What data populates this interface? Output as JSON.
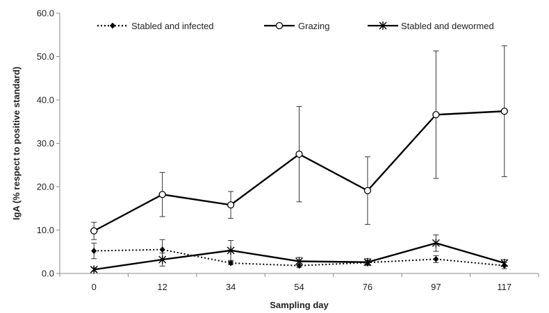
{
  "chart_data": {
    "type": "line",
    "x": [
      "0",
      "12",
      "34",
      "54",
      "76",
      "97",
      "117"
    ],
    "xlabel": "Sampling day",
    "ylabel": "IgA (% respect to positive standard)",
    "ylim": [
      0,
      60
    ],
    "yticks": [
      "0.0",
      "10.0",
      "20.0",
      "30.0",
      "40.0",
      "50.0",
      "60.0"
    ],
    "grid": false,
    "legend_position": "top",
    "series": [
      {
        "name": "Stabled and infected",
        "line_style": "dotted",
        "marker": "diamond",
        "color": "#000000",
        "values": [
          5.2,
          5.5,
          2.4,
          1.8,
          2.5,
          3.3,
          1.8
        ],
        "errors": [
          1.8,
          2.3,
          0.4,
          0.4,
          0.5,
          0.8,
          0.7
        ]
      },
      {
        "name": "Grazing",
        "line_style": "solid",
        "marker": "open-circle",
        "color": "#000000",
        "values": [
          9.8,
          18.2,
          15.8,
          27.5,
          19.1,
          36.6,
          37.4
        ],
        "errors": [
          2.0,
          5.1,
          3.1,
          11.0,
          7.8,
          14.7,
          15.1
        ]
      },
      {
        "name": "Stabled and dewormed",
        "line_style": "solid",
        "marker": "asterisk",
        "color": "#000000",
        "values": [
          0.9,
          3.2,
          5.3,
          2.8,
          2.6,
          7.0,
          2.4
        ],
        "errors": [
          0.4,
          1.5,
          2.3,
          0.9,
          0.8,
          1.9,
          0.8
        ]
      }
    ]
  }
}
